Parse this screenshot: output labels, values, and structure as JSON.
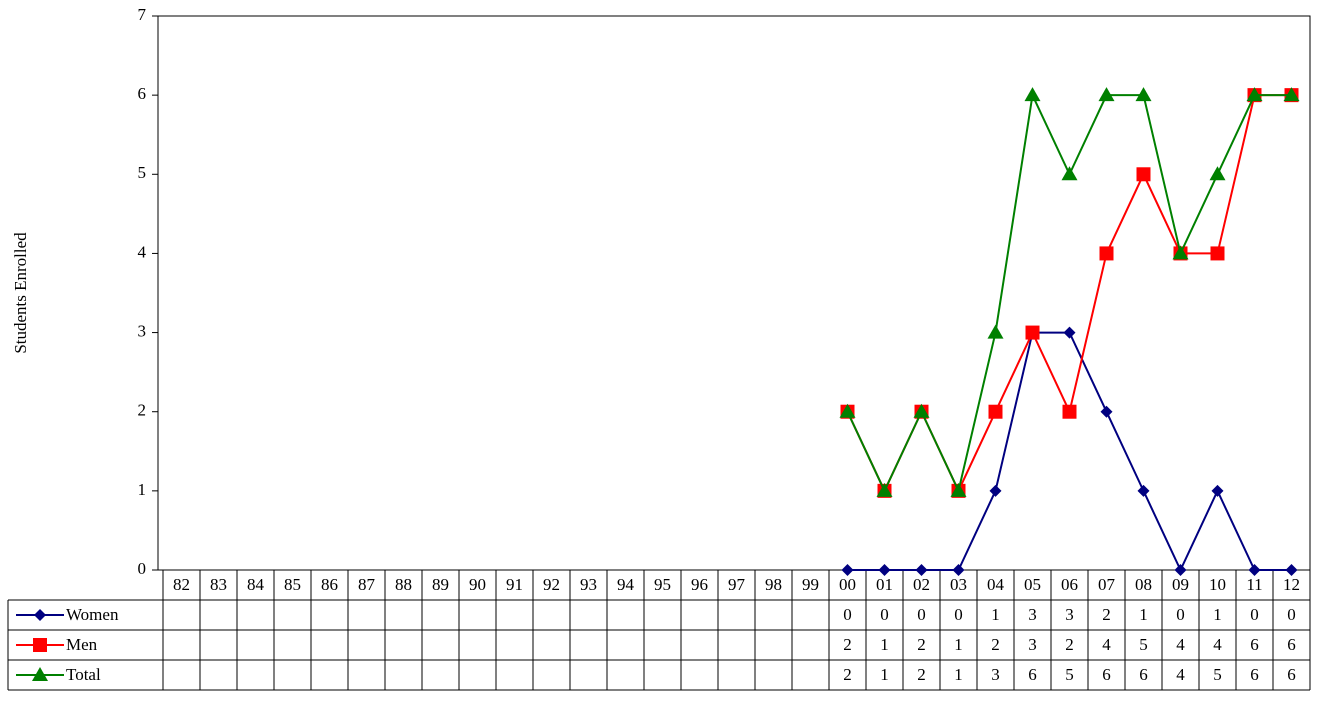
{
  "chart_data": {
    "type": "line",
    "y_label": "Students Enrolled",
    "categories": [
      "82",
      "83",
      "84",
      "85",
      "86",
      "87",
      "88",
      "89",
      "90",
      "91",
      "92",
      "93",
      "94",
      "95",
      "96",
      "97",
      "98",
      "99",
      "00",
      "01",
      "02",
      "03",
      "04",
      "05",
      "06",
      "07",
      "08",
      "09",
      "10",
      "11",
      "12"
    ],
    "series": [
      {
        "name": "Women",
        "color": "#000080",
        "marker": "diamond",
        "values": [
          null,
          null,
          null,
          null,
          null,
          null,
          null,
          null,
          null,
          null,
          null,
          null,
          null,
          null,
          null,
          null,
          null,
          null,
          0,
          0,
          0,
          0,
          1,
          3,
          3,
          2,
          1,
          0,
          1,
          0,
          0
        ]
      },
      {
        "name": "Men",
        "color": "#ff0000",
        "marker": "square",
        "values": [
          null,
          null,
          null,
          null,
          null,
          null,
          null,
          null,
          null,
          null,
          null,
          null,
          null,
          null,
          null,
          null,
          null,
          null,
          2,
          1,
          2,
          1,
          2,
          3,
          2,
          4,
          5,
          4,
          4,
          6,
          6
        ]
      },
      {
        "name": "Total",
        "color": "#008000",
        "marker": "triangle",
        "values": [
          null,
          null,
          null,
          null,
          null,
          null,
          null,
          null,
          null,
          null,
          null,
          null,
          null,
          null,
          null,
          null,
          null,
          null,
          2,
          1,
          2,
          1,
          3,
          6,
          5,
          6,
          6,
          4,
          5,
          6,
          6
        ]
      }
    ],
    "ylim": [
      0,
      7
    ],
    "yticks": [
      0,
      1,
      2,
      3,
      4,
      5,
      6,
      7
    ],
    "data_table": true
  }
}
